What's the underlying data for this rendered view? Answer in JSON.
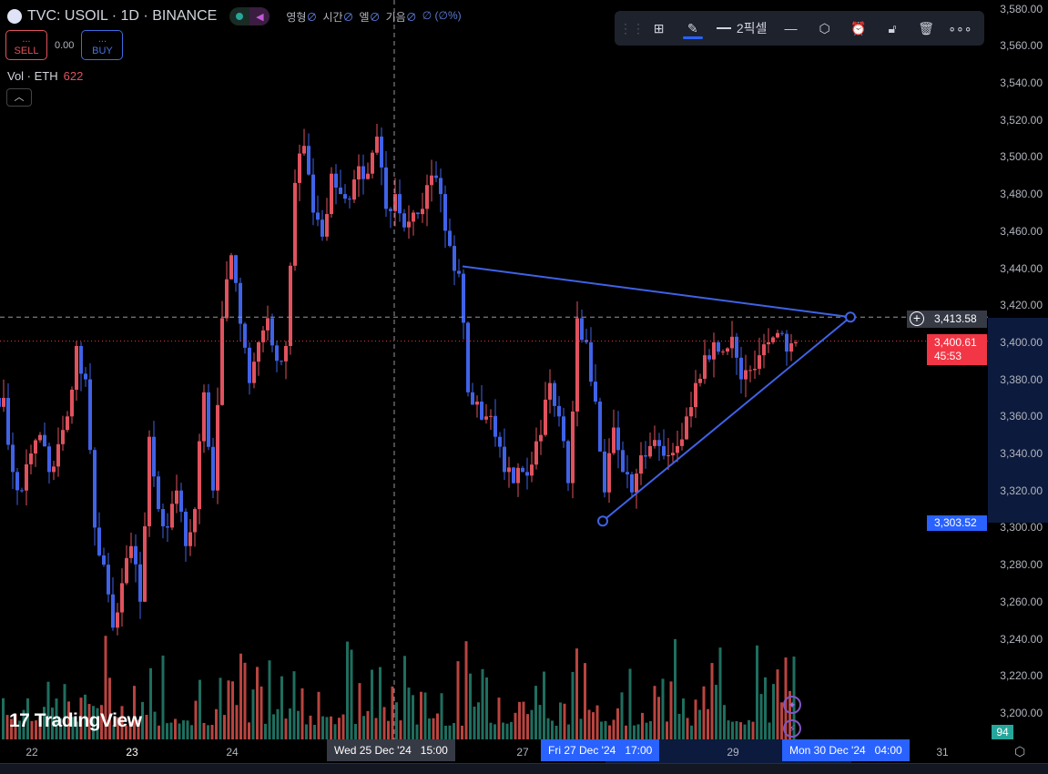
{
  "header": {
    "symbol": "TVC: USOIL · 1D · BINANCE",
    "ohlc": [
      {
        "label": "영형",
        "value": "∅"
      },
      {
        "label": "시간",
        "value": "∅"
      },
      {
        "label": "엘",
        "value": "∅"
      },
      {
        "label": "기음",
        "value": "∅"
      },
      {
        "label": "",
        "value": "∅ (∅%)"
      }
    ]
  },
  "trade": {
    "sell_dots": "...",
    "sell": "SELL",
    "spread": "0.00",
    "buy_dots": "...",
    "buy": "BUY"
  },
  "volume": {
    "label": "Vol · ETH",
    "value": "622"
  },
  "toolbar": {
    "line_width": "2픽셀",
    "icons": [
      "drag-handle",
      "add-to-layout",
      "pencil",
      "line-width",
      "line-style",
      "settings-hexagon",
      "alert-add",
      "lock-open",
      "trash",
      "more"
    ]
  },
  "colors": {
    "up": "#e0525e",
    "down": "#3f62e6",
    "vol_up": "#b8443f",
    "vol_down": "#1f6e5f",
    "trendline": "#3f62e6",
    "last_price_bg": "#f23645",
    "highlight_bg": "#2962ff"
  },
  "yaxis": {
    "labels": [
      "3,580.00",
      "3,560.00",
      "3,540.00",
      "3,520.00",
      "3,500.00",
      "3,480.00",
      "3,460.00",
      "3,440.00",
      "3,420.00",
      "3,400.00",
      "3,380.00",
      "3,360.00",
      "3,340.00",
      "3,320.00",
      "3,300.00",
      "3,280.00",
      "3,260.00",
      "3,240.00",
      "3,220.00",
      "3,200.00"
    ],
    "crosshair_price": "3,413.58",
    "last_price": "3,400.61",
    "countdown": "45:53",
    "low_point_price": "3,303.52",
    "badge": "94"
  },
  "xaxis": {
    "labels": [
      "22",
      "23",
      "24",
      "27",
      "29",
      "31"
    ],
    "crosshair_time": "Wed 25 Dec '24   15:00",
    "range_start": "Fri 27 Dec '24   17:00",
    "range_end": "Mon 30 Dec '24   04:00"
  },
  "brand": "TradingView",
  "chart_data": {
    "type": "candlestick",
    "closes": [
      3370,
      3330,
      3320,
      3340,
      3350,
      3330,
      3345,
      3360,
      3398,
      3380,
      3300,
      3280,
      3246,
      3270,
      3290,
      3260,
      3349,
      3310,
      3300,
      3320,
      3290,
      3310,
      3373,
      3320,
      3413,
      3447,
      3410,
      3378,
      3400,
      3413,
      3390,
      3398,
      3486,
      3506,
      3470,
      3457,
      3491,
      3480,
      3477,
      3495,
      3491,
      3511,
      3472,
      3480,
      3462,
      3470,
      3472,
      3490,
      3480,
      3452,
      3437,
      3373,
      3368,
      3360,
      3349,
      3330,
      3324,
      3330,
      3334,
      3350,
      3378,
      3360,
      3324,
      3413,
      3400,
      3368,
      3319,
      3354,
      3330,
      3319,
      3339,
      3344,
      3344,
      3339,
      3344,
      3360,
      3378,
      3393,
      3400,
      3395,
      3403,
      3380,
      3385,
      3393,
      3400,
      3405,
      3395,
      3400
    ],
    "trendlines": [
      {
        "from": 3441,
        "to": 3413.58
      },
      {
        "from": 3303.52,
        "to": 3413.58
      }
    ],
    "ylim": [
      3200,
      3580
    ]
  }
}
